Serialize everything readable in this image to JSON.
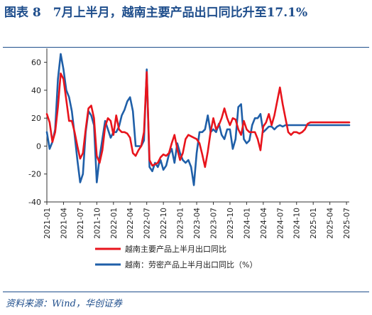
{
  "figure": {
    "title": "图表 8　7月上半月，越南主要产品出口同比升至17.1%",
    "source": "资料来源：Wind，华创证券"
  },
  "chart_data": {
    "type": "line",
    "ylim": [
      -40,
      70
    ],
    "yticks": [
      -40,
      -20,
      0,
      20,
      40,
      60
    ],
    "xtick_labels": [
      "2021-01",
      "2021-04",
      "2021-07",
      "2021-10",
      "2022-01",
      "2022-04",
      "2022-07",
      "2022-10",
      "2023-01",
      "2023-04",
      "2023-07",
      "2023-10",
      "2024-01",
      "2024-04",
      "2024-07",
      "2024-10",
      "2025-01",
      "2025-04",
      "2025-07"
    ],
    "xtick_index": [
      0,
      6,
      12,
      18,
      24,
      30,
      36,
      42,
      48,
      54,
      60,
      66,
      72,
      78,
      84,
      90,
      96,
      102,
      108
    ],
    "n_points": 110,
    "legend_position": "bottom-center",
    "series": [
      {
        "name": "越南主要产品上半月出口同比",
        "color": "#e8141c",
        "values": [
          23,
          17,
          3,
          10,
          28,
          52,
          48,
          33,
          18,
          18,
          10,
          0,
          -9,
          -5,
          12,
          27,
          29,
          20,
          -7,
          -12,
          -3,
          14,
          20,
          18,
          8,
          22,
          12,
          10,
          10,
          9,
          6,
          -5,
          -7,
          -3,
          0,
          10,
          53,
          -10,
          -14,
          -13,
          -12,
          -8,
          -6,
          -7,
          -5,
          2,
          8,
          -2,
          -10,
          -5,
          5,
          8,
          7,
          6,
          5,
          2,
          -6,
          -15,
          -4,
          10,
          20,
          12,
          15,
          20,
          27,
          20,
          15,
          20,
          19,
          12,
          8,
          18,
          12,
          10,
          10,
          10,
          5,
          -3,
          14,
          17,
          23,
          15,
          22,
          32,
          42,
          30,
          20,
          10,
          8,
          10,
          10,
          9,
          10,
          12,
          16,
          17,
          17,
          17,
          17,
          17,
          17,
          17,
          17,
          17,
          17,
          17,
          17,
          17,
          17,
          17
        ]
      },
      {
        "name": "越南：劳密产品上半月出口同比（%）",
        "color": "#1f5fa8",
        "values": [
          10,
          -2,
          3,
          12,
          48,
          66,
          55,
          40,
          35,
          25,
          8,
          -10,
          -26,
          -20,
          10,
          25,
          22,
          15,
          -26,
          -8,
          5,
          18,
          12,
          6,
          10,
          10,
          14,
          22,
          26,
          32,
          35,
          25,
          0,
          0,
          0,
          4,
          55,
          -15,
          -18,
          -12,
          -15,
          -10,
          -17,
          -14,
          -6,
          -2,
          -12,
          2,
          -5,
          -10,
          -12,
          -10,
          -15,
          -28,
          -5,
          10,
          10,
          12,
          22,
          10,
          12,
          10,
          16,
          8,
          5,
          12,
          12,
          -2,
          5,
          28,
          30,
          5,
          2,
          4,
          15,
          20,
          20,
          23,
          10,
          12,
          14,
          14,
          12,
          14,
          15,
          14,
          15,
          15,
          15,
          15,
          15,
          15,
          15,
          15,
          15,
          15,
          15,
          15,
          15,
          15,
          15,
          15,
          15,
          15,
          15,
          15,
          15,
          15,
          15,
          15
        ]
      }
    ]
  }
}
